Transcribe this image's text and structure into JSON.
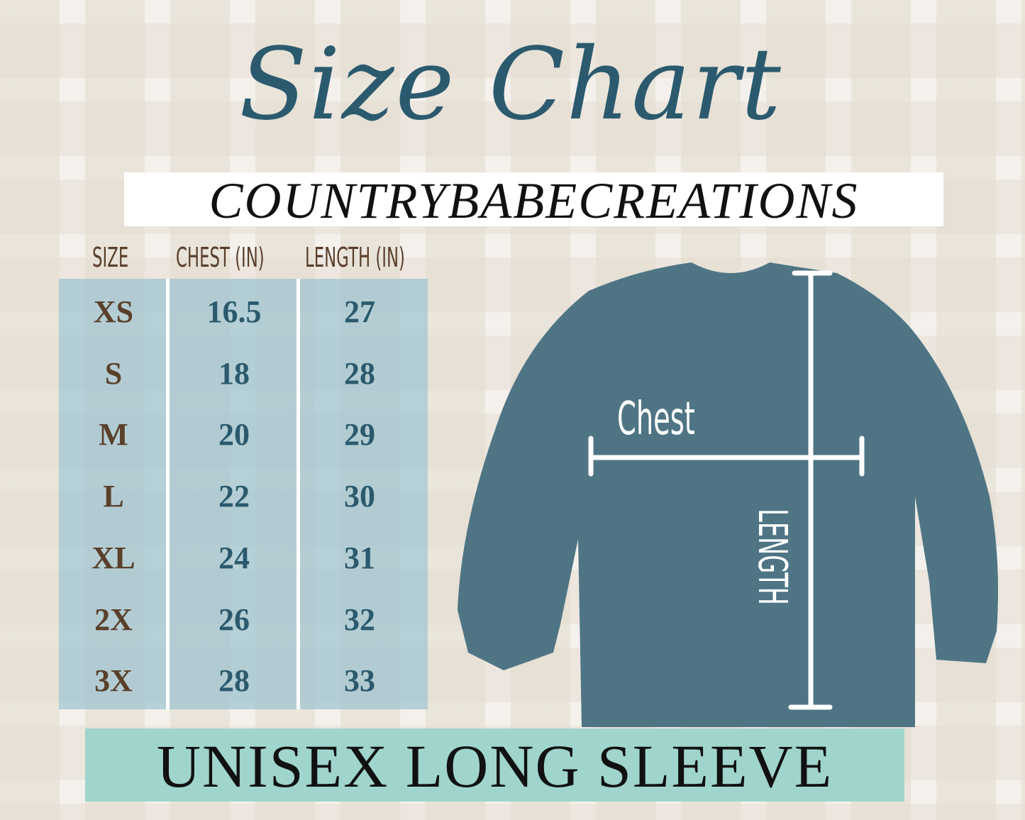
{
  "title": "Size Chart",
  "brand": "COUNTRYBABECREATIONS",
  "table": {
    "headers": [
      "SIZE",
      "CHEST (IN)",
      "LENGTH (IN)"
    ],
    "rows": [
      {
        "size": "XS",
        "chest": "16.5",
        "length": "27"
      },
      {
        "size": "S",
        "chest": "18",
        "length": "28"
      },
      {
        "size": "M",
        "chest": "20",
        "length": "29"
      },
      {
        "size": "L",
        "chest": "22",
        "length": "30"
      },
      {
        "size": "XL",
        "chest": "24",
        "length": "31"
      },
      {
        "size": "2X",
        "chest": "26",
        "length": "32"
      },
      {
        "size": "3X",
        "chest": "28",
        "length": "33"
      }
    ]
  },
  "diagram": {
    "chest_label": "Chest",
    "length_label": "LENGTH"
  },
  "banner": "UNISEX LONG SLEEVE",
  "colors": {
    "title": "#2b5a6e",
    "table_bg": "#a0c4d0",
    "banner_bg": "#9fd5cc",
    "shirt": "#4f7585",
    "header_text": "#5a3f2a"
  }
}
